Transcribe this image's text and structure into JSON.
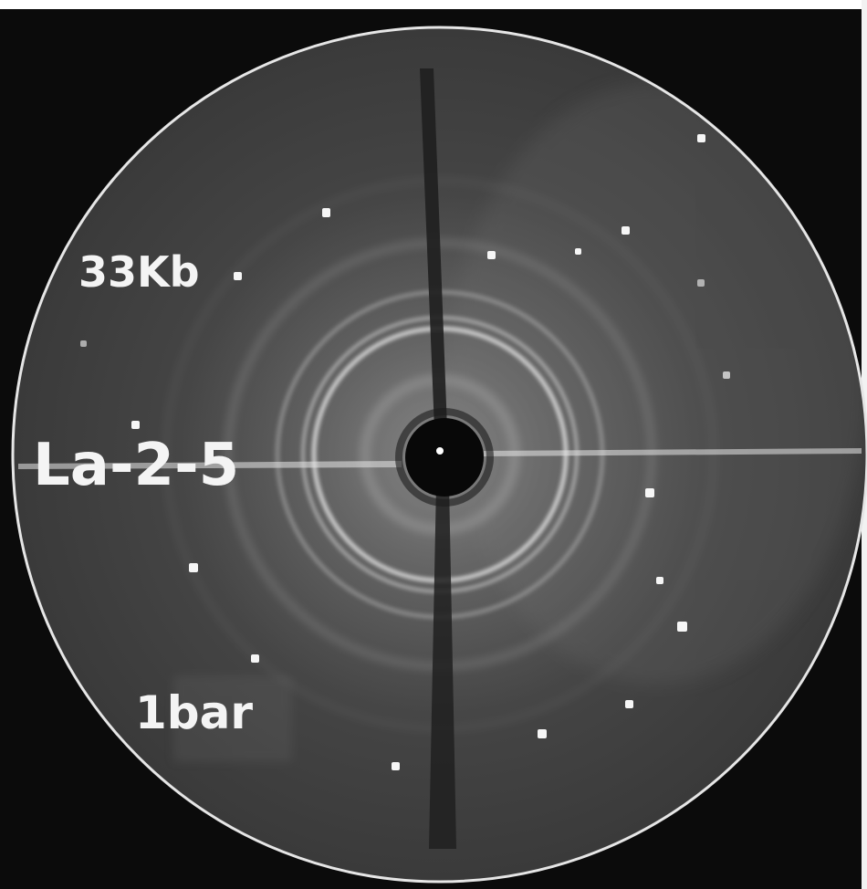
{
  "photo": {
    "labels": {
      "sample": "La-2-5",
      "dose": "33Kb",
      "pressure": "1bar"
    },
    "colors": {
      "background": "#0c0c0c",
      "film": "#3b3b3b",
      "film_rim": "#e6e6e6",
      "ring": "#d9d9d9",
      "spot": "#f6f6f6",
      "beamstop": "#080808"
    }
  }
}
